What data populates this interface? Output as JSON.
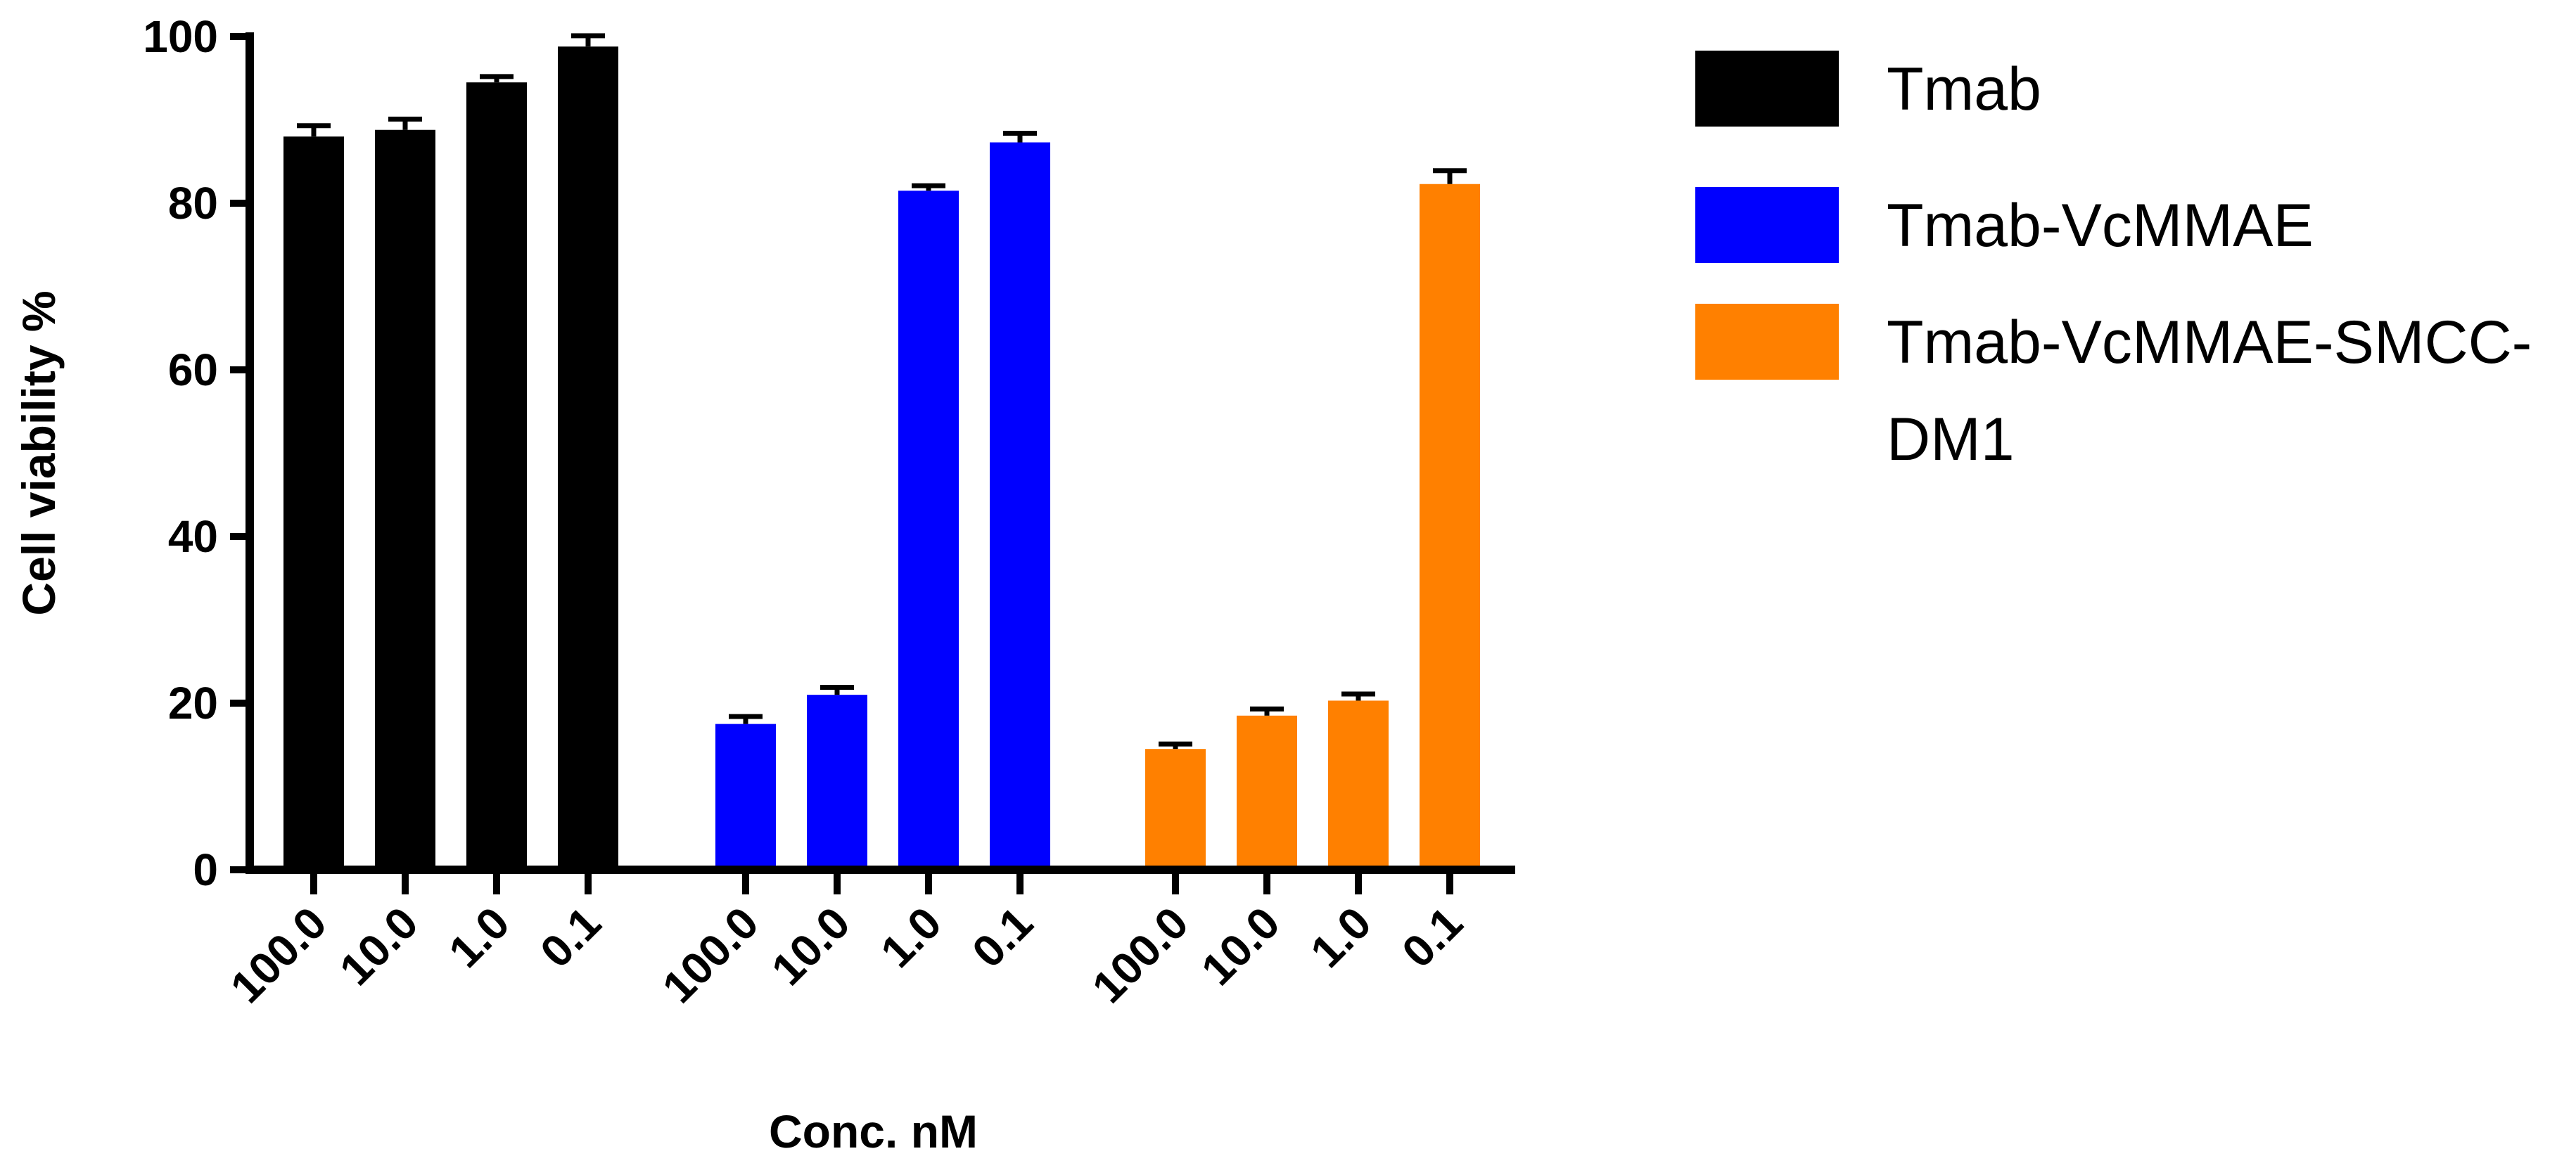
{
  "chart_data": {
    "type": "bar",
    "title": "",
    "xlabel": "Conc. nM",
    "ylabel": "Cell viability %",
    "ylim": [
      0,
      100
    ],
    "yticks": [
      0,
      20,
      40,
      60,
      80,
      100
    ],
    "grid": false,
    "legend_position": "top-right",
    "groups": [
      {
        "name": "Tmab",
        "color": "#000000",
        "categories": [
          "100.0",
          "10.0",
          "1.0",
          "0.1"
        ],
        "values": [
          88.0,
          88.8,
          94.5,
          98.8
        ],
        "errors": [
          1.3,
          1.3,
          0.7,
          1.3
        ]
      },
      {
        "name": "Tmab-VcMMAE",
        "color": "#0000FF",
        "categories": [
          "100.0",
          "10.0",
          "1.0",
          "0.1"
        ],
        "values": [
          17.5,
          21.0,
          81.5,
          87.3
        ],
        "errors": [
          0.9,
          0.9,
          0.6,
          1.1
        ]
      },
      {
        "name": "Tmab-VcMMAE-SMCC-DM1",
        "legend_lines": [
          "Tmab-VcMMAE-SMCC-",
          "DM1"
        ],
        "color": "#FF8000",
        "categories": [
          "100.0",
          "10.0",
          "1.0",
          "0.1"
        ],
        "values": [
          14.5,
          18.5,
          20.3,
          82.3
        ],
        "errors": [
          0.6,
          0.8,
          0.8,
          1.6
        ]
      }
    ]
  }
}
